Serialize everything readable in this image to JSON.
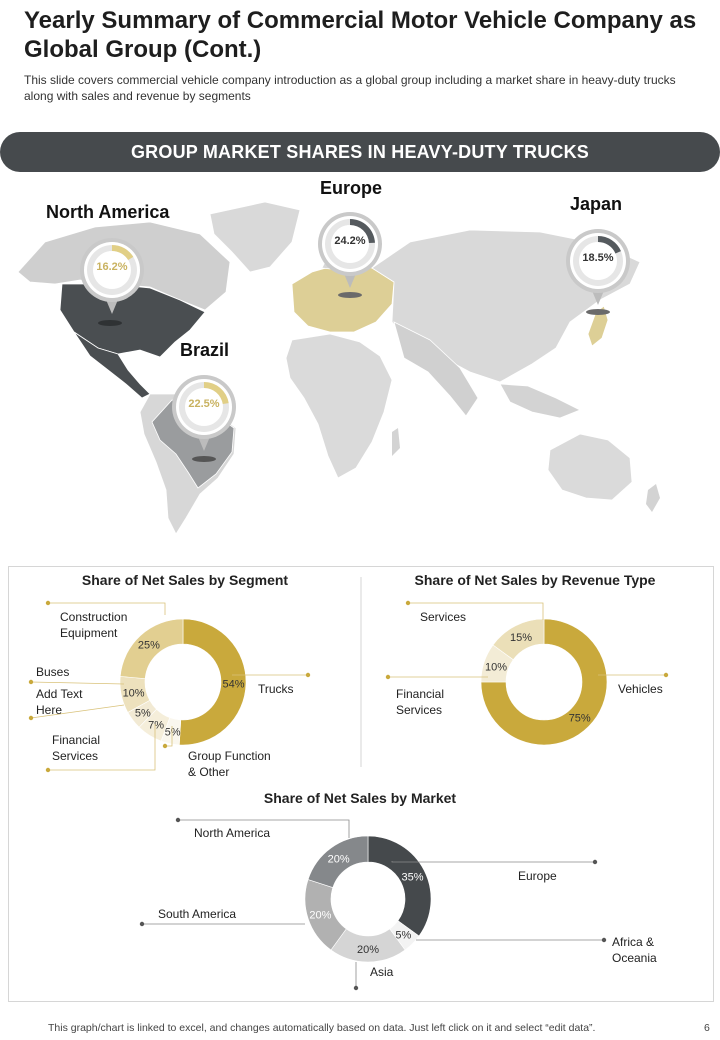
{
  "header": {
    "title": "Yearly Summary of Commercial Motor Vehicle Company as Global Group (Cont.)",
    "subtitle": "This slide covers commercial vehicle company introduction as a global group including a market share in heavy-duty trucks along with sales and revenue  by segments"
  },
  "banner": {
    "text": "GROUP MARKET SHARES IN HEAVY-DUTY TRUCKS"
  },
  "map": {
    "regions": [
      {
        "name": "North America",
        "share": "16.2%",
        "value": 16.2,
        "color": "#e1cf86"
      },
      {
        "name": "Europe",
        "share": "24.2%",
        "value": 24.2,
        "color": "#555a5e"
      },
      {
        "name": "Japan",
        "share": "18.5%",
        "value": 18.5,
        "color": "#555a5e"
      },
      {
        "name": "Brazil",
        "share": "22.5%",
        "value": 22.5,
        "color": "#e1cf86"
      }
    ]
  },
  "chart_data": [
    {
      "type": "pie",
      "title": "Share of Net Sales by Segment",
      "labels": [
        "Trucks",
        "Group Function & Other",
        "Financial Services",
        "Add Text Here",
        "Buses",
        "Construction Equipment"
      ],
      "label_lines": [
        [
          "Trucks"
        ],
        [
          "Group Function",
          "& Other"
        ],
        [
          "Financial",
          "Services"
        ],
        [
          "Add Text",
          "Here"
        ],
        [
          "Buses"
        ],
        [
          "Construction",
          "Equipment"
        ]
      ],
      "values": [
        54,
        5,
        7,
        5,
        10,
        25
      ],
      "value_labels": [
        "54%",
        "5%",
        "7%",
        "5%",
        "10%",
        "25%"
      ],
      "colors": [
        "#c9a93c",
        "#faf7ee",
        "#f5eeda",
        "#f2ead4",
        "#ede1bd",
        "#e2cf91"
      ]
    },
    {
      "type": "pie",
      "title": "Share of Net Sales by Revenue Type",
      "labels": [
        "Vehicles",
        "Financial Services",
        "Services"
      ],
      "label_lines": [
        [
          "Vehicles"
        ],
        [
          "Financial",
          "Services"
        ],
        [
          "Services"
        ]
      ],
      "values": [
        75,
        10,
        15
      ],
      "value_labels": [
        "75%",
        "10%",
        "15%"
      ],
      "colors": [
        "#c9a93c",
        "#f3ecd6",
        "#ebdfb8"
      ]
    },
    {
      "type": "pie",
      "title": "Share of Net Sales by Market",
      "labels": [
        "Europe",
        "Africa & Oceania",
        "Asia",
        "South America",
        "North America"
      ],
      "label_lines": [
        [
          "Europe"
        ],
        [
          "Africa &",
          "Oceania"
        ],
        [
          "Asia"
        ],
        [
          "South America"
        ],
        [
          "North America"
        ]
      ],
      "values": [
        35,
        5,
        20,
        20,
        20
      ],
      "value_labels": [
        "35%",
        "5%",
        "20%",
        "20%",
        "20%"
      ],
      "colors": [
        "#45494c",
        "#f3f3f3",
        "#d5d5d5",
        "#b1b1b1",
        "#85888b"
      ]
    }
  ],
  "footer": {
    "note": "This graph/chart is linked to excel,  and changes automatically based on data. Just left click on it and select “edit data”.",
    "page": "6"
  }
}
